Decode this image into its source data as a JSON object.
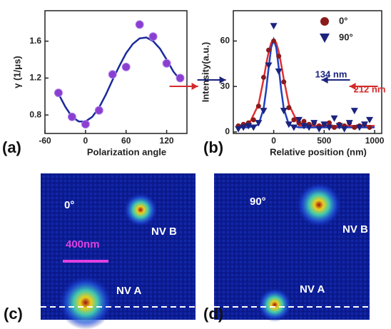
{
  "chart_data": [
    {
      "type": "scatter",
      "label": "(a)",
      "x_label": "Polarization angle",
      "y_label": "γ (1/μs)",
      "xlim": [
        -60,
        150
      ],
      "ylim": [
        0.6,
        1.93
      ],
      "xticks": [
        -60,
        0,
        60,
        120
      ],
      "yticks": [
        0.8,
        1.2,
        1.6
      ],
      "series": [
        {
          "color": "#8a3fd0",
          "marker": "circle",
          "x": [
            -40,
            -20,
            0,
            20,
            40,
            60,
            80,
            100,
            120,
            140
          ],
          "values": [
            1.04,
            0.78,
            0.7,
            0.85,
            1.24,
            1.32,
            1.78,
            1.65,
            1.36,
            1.2
          ]
        },
        {
          "color": "#1a2a9a",
          "marker": "line",
          "x": [
            -40,
            -30,
            -20,
            -10,
            0,
            10,
            20,
            30,
            40,
            50,
            60,
            70,
            80,
            90,
            100,
            110,
            120,
            130,
            140
          ],
          "values": [
            1.03,
            0.89,
            0.78,
            0.73,
            0.73,
            0.78,
            0.88,
            1.02,
            1.18,
            1.33,
            1.47,
            1.57,
            1.63,
            1.64,
            1.6,
            1.52,
            1.4,
            1.27,
            1.18
          ]
        }
      ]
    },
    {
      "type": "scatter",
      "label": "(b)",
      "x_label": "Relative position (nm)",
      "y_label": "Intensity(a.u.)",
      "xlim": [
        -400,
        1070
      ],
      "ylim": [
        -1,
        80
      ],
      "xticks": [
        0,
        500,
        1000
      ],
      "yticks": [
        0,
        30,
        60
      ],
      "annotations": [
        {
          "text": "134 nm",
          "color": "#1a237e"
        },
        {
          "text": "212 nm",
          "color": "#d42a2a"
        }
      ],
      "series": [
        {
          "name": "0°",
          "color": "#8b1a1a",
          "marker": "circle",
          "x": [
            -350,
            -300,
            -250,
            -200,
            -150,
            -100,
            -50,
            0,
            50,
            100,
            150,
            200,
            250,
            300,
            350,
            400,
            450,
            500,
            550,
            600,
            650,
            700,
            750,
            800,
            850,
            900,
            950
          ],
          "values": [
            4,
            5,
            6,
            8,
            17,
            36,
            54,
            60,
            50,
            33,
            16,
            8,
            6,
            7,
            5,
            6,
            4,
            5,
            6,
            3,
            5,
            4,
            6,
            3,
            4,
            5,
            3
          ]
        },
        {
          "name": "90°",
          "color": "#1a237e",
          "marker": "triangle",
          "x": [
            -350,
            -300,
            -250,
            -200,
            -150,
            -100,
            -50,
            0,
            50,
            100,
            150,
            200,
            250,
            300,
            350,
            400,
            450,
            500,
            550,
            600,
            650,
            700,
            750,
            800,
            850,
            900,
            950
          ],
          "values": [
            2,
            3,
            4,
            3,
            6,
            14,
            44,
            70,
            40,
            14,
            5,
            3,
            8,
            4,
            3,
            6,
            2,
            5,
            3,
            9,
            4,
            2,
            6,
            14,
            3,
            5,
            8
          ]
        },
        {
          "color": "#e03030",
          "marker": "line",
          "x": [
            -350,
            -250,
            -150,
            -100,
            -75,
            -50,
            -25,
            0,
            25,
            50,
            75,
            100,
            150,
            250,
            500,
            1000
          ],
          "values": [
            4,
            4.3,
            18.2,
            34.8,
            44.3,
            52.9,
            58.8,
            61,
            58.8,
            52.9,
            44.3,
            34.8,
            18.2,
            4.3,
            4,
            4
          ]
        },
        {
          "color": "#2040c0",
          "marker": "line",
          "x": [
            -350,
            -250,
            -150,
            -100,
            -75,
            -50,
            -25,
            0,
            25,
            50,
            75,
            100,
            150,
            250,
            500,
            1000
          ],
          "values": [
            3,
            3,
            4.8,
            15.4,
            27.4,
            42.4,
            55.7,
            61,
            55.7,
            42.4,
            27.4,
            15.4,
            4.8,
            3,
            3,
            3
          ]
        }
      ]
    }
  ],
  "panels": [
    {
      "label": "(c)",
      "angle": "0°",
      "scale_bar": "400nm",
      "nv_b": "NV B",
      "nv_a": "NV A"
    },
    {
      "label": "(d)",
      "angle": "90°",
      "nv_b": "NV B",
      "nv_a": "NV A"
    }
  ]
}
